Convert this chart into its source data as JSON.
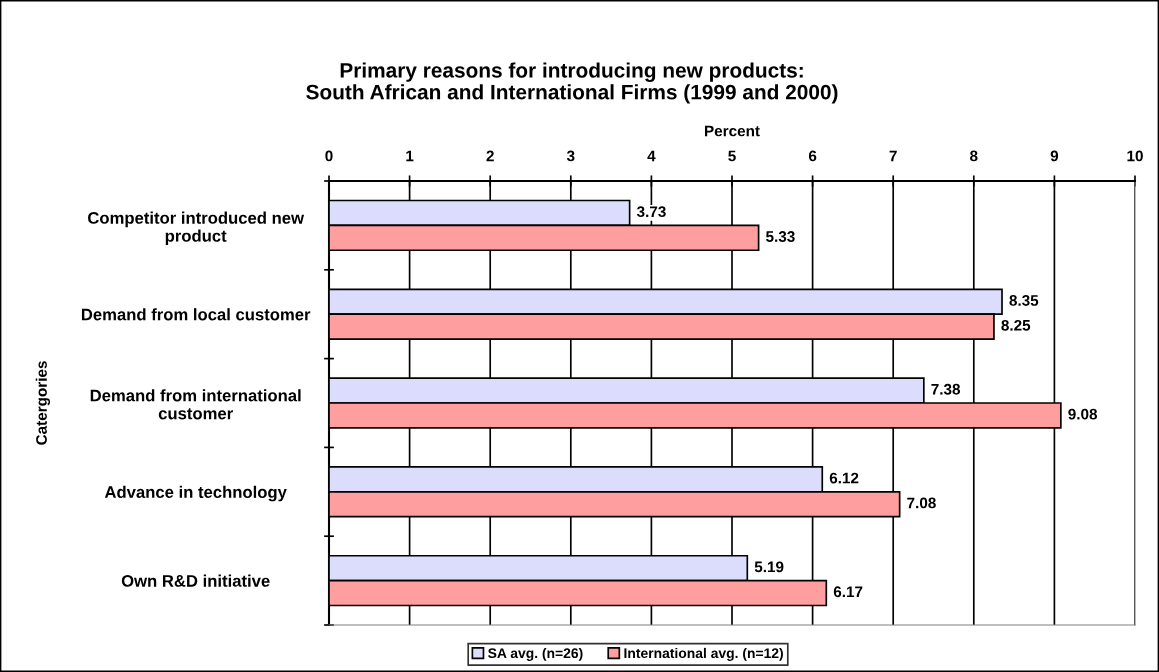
{
  "chart_data": {
    "type": "bar",
    "orientation": "horizontal",
    "title": "Primary reasons for introducing new products:\nSouth African and International Firms (1999 and 2000)",
    "xlabel": "Percent",
    "ylabel": "Catergories",
    "categories": [
      "Competitor introduced new\nproduct",
      "Demand from local customer",
      "Demand from international\ncustomer",
      "Advance in technology",
      "Own R&D initiative"
    ],
    "series": [
      {
        "name": "SA avg. (n=26)",
        "color": "#dcdcfc",
        "values": [
          3.73,
          8.35,
          7.38,
          6.12,
          5.19
        ]
      },
      {
        "name": "International avg. (n=12)",
        "color": "#ff9e9e",
        "values": [
          5.33,
          8.25,
          9.08,
          7.08,
          6.17
        ]
      }
    ],
    "xlim": [
      0,
      10
    ],
    "xticks": [
      0,
      1,
      2,
      3,
      4,
      5,
      6,
      7,
      8,
      9,
      10
    ],
    "grid": "x",
    "legend": "bottom",
    "data_labels": true
  }
}
